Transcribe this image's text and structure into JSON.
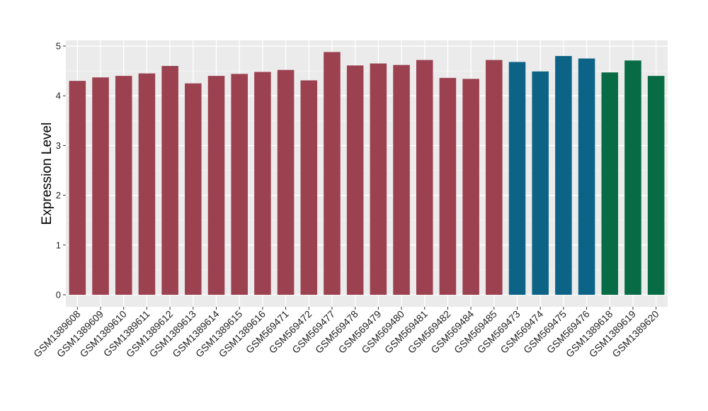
{
  "chart_data": {
    "type": "bar",
    "title": "",
    "xlabel": "",
    "ylabel": "Expression Level",
    "ylim": [
      0,
      5
    ],
    "yticks": [
      0,
      1,
      2,
      3,
      4,
      5
    ],
    "grid": true,
    "background": "#ebebeb",
    "categories": [
      "GSM1389608",
      "GSM1389609",
      "GSM1389610",
      "GSM1389611",
      "GSM1389612",
      "GSM1389613",
      "GSM1389614",
      "GSM1389615",
      "GSM1389616",
      "GSM569471",
      "GSM569472",
      "GSM569477",
      "GSM569478",
      "GSM569479",
      "GSM569480",
      "GSM569481",
      "GSM569482",
      "GSM569484",
      "GSM569485",
      "GSM569473",
      "GSM569474",
      "GSM569475",
      "GSM569476",
      "GSM1389618",
      "GSM1389619",
      "GSM1389620"
    ],
    "values": [
      4.3,
      4.37,
      4.4,
      4.45,
      4.6,
      4.25,
      4.4,
      4.44,
      4.48,
      4.52,
      4.31,
      4.88,
      4.61,
      4.65,
      4.62,
      4.72,
      4.36,
      4.34,
      4.72,
      4.68,
      4.49,
      4.8,
      4.75,
      4.47,
      4.71,
      4.4
    ],
    "colors": [
      "#9b4150",
      "#9b4150",
      "#9b4150",
      "#9b4150",
      "#9b4150",
      "#9b4150",
      "#9b4150",
      "#9b4150",
      "#9b4150",
      "#9b4150",
      "#9b4150",
      "#9b4150",
      "#9b4150",
      "#9b4150",
      "#9b4150",
      "#9b4150",
      "#9b4150",
      "#9b4150",
      "#9b4150",
      "#0c6386",
      "#0c6386",
      "#0c6386",
      "#0c6386",
      "#076b46",
      "#076b46",
      "#076b46"
    ]
  }
}
